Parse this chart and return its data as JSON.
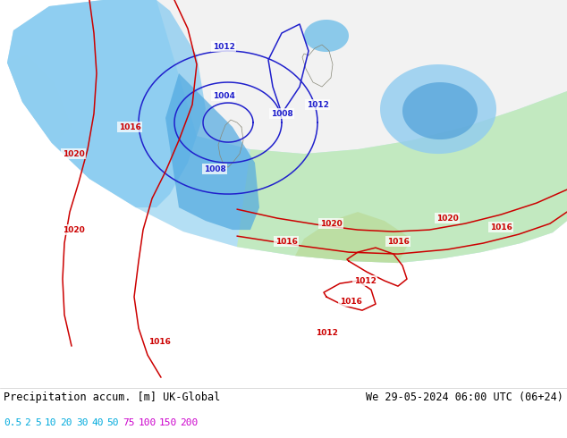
{
  "title_left": "Precipitation accum. [m] UK-Global",
  "title_right": "We 29-05-2024 06:00 UTC (06+24)",
  "colorbar_labels": [
    "0.5",
    "2",
    "5",
    "10",
    "20",
    "30",
    "40",
    "50",
    "75",
    "100",
    "150",
    "200"
  ],
  "bg_color": "#a8a890",
  "domain_color": "#f0f0f0",
  "sea_outside_color": "#b8b8b0",
  "precip_light_blue": "#b0e0f8",
  "precip_med_blue": "#70c0f0",
  "precip_dark_blue": "#3090d0",
  "precip_light_green": "#c8f0c0",
  "precip_med_green": "#a0e090",
  "land_green": "#d8e8c0",
  "figsize": [
    6.34,
    4.9
  ],
  "dpi": 100,
  "scale_colors_low": "#00ccff",
  "scale_colors_high": "#ff00ff",
  "isobar_blue": "#2020cc",
  "isobar_red": "#cc0000"
}
